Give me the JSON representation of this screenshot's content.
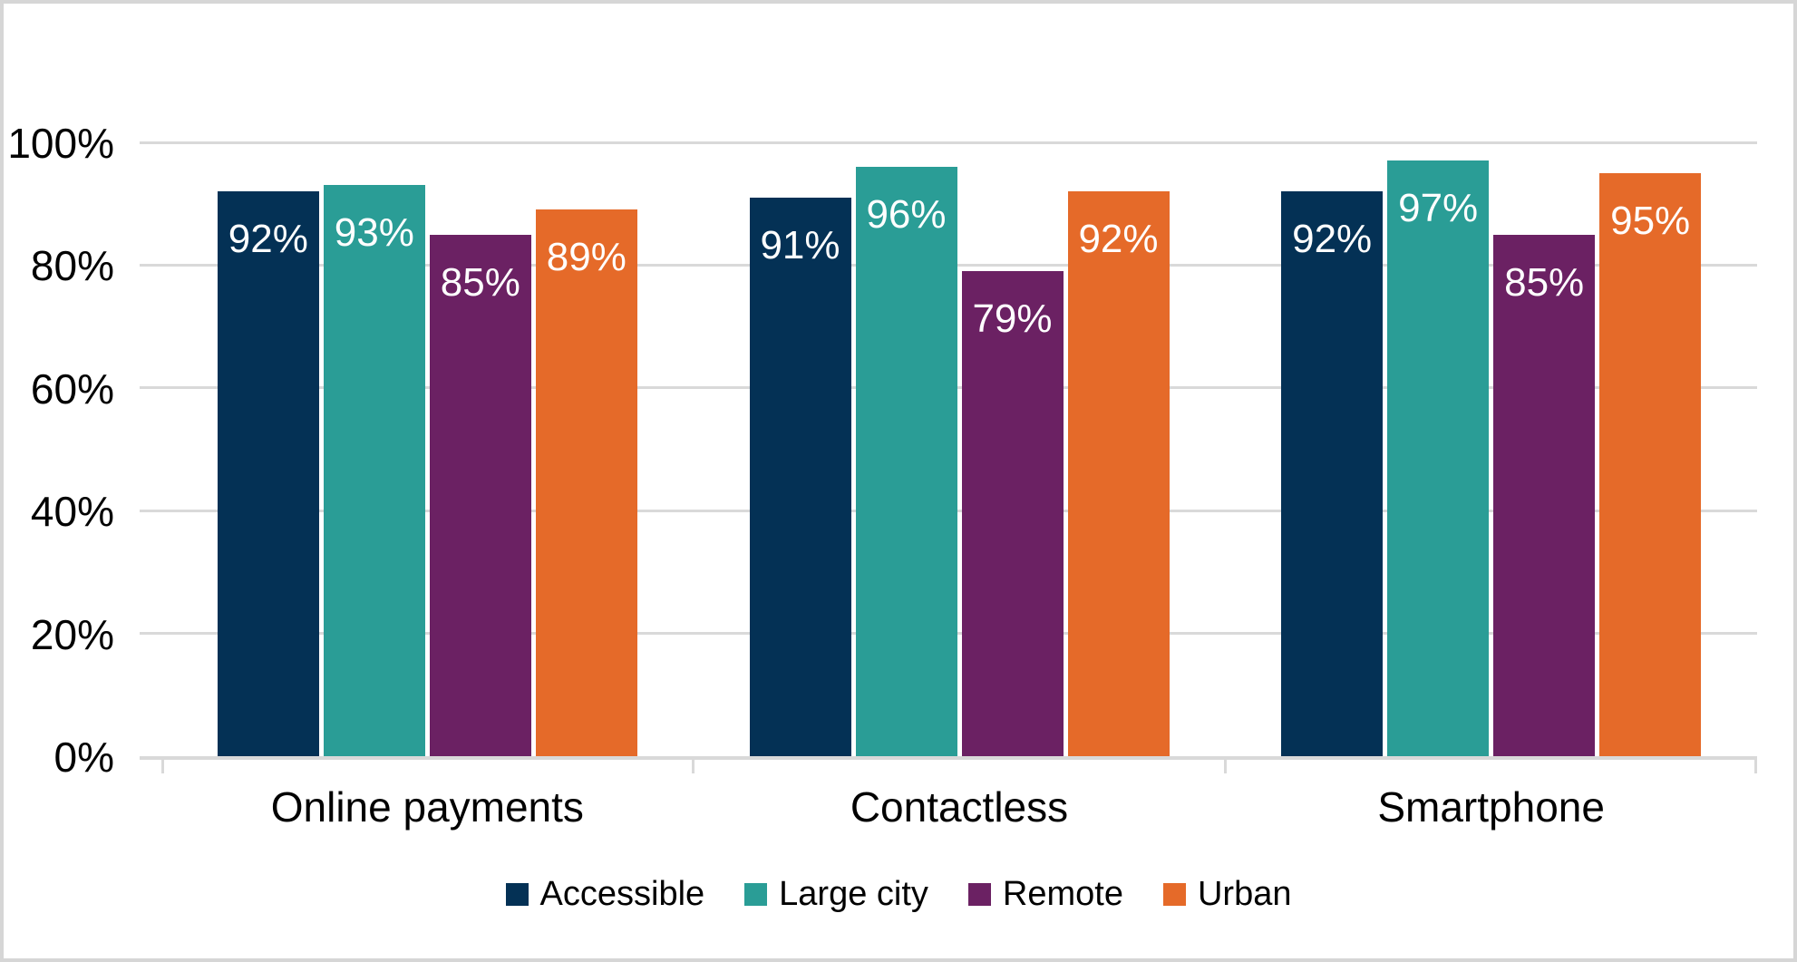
{
  "chart_data": {
    "type": "bar",
    "title": "",
    "categories": [
      "Online payments",
      "Contactless",
      "Smartphone"
    ],
    "series": [
      {
        "name": "Accessible",
        "color": "#043155",
        "values": [
          92,
          91,
          92
        ],
        "labels": [
          "92%",
          "91%",
          "92%"
        ]
      },
      {
        "name": "Large city",
        "color": "#2a9d96",
        "values": [
          93,
          96,
          97
        ],
        "labels": [
          "93%",
          "96%",
          "97%"
        ]
      },
      {
        "name": "Remote",
        "color": "#6b2163",
        "values": [
          85,
          79,
          85
        ],
        "labels": [
          "85%",
          "79%",
          "85%"
        ]
      },
      {
        "name": "Urban",
        "color": "#e56a29",
        "values": [
          89,
          92,
          95
        ],
        "labels": [
          "89%",
          "92%",
          "95%"
        ]
      }
    ],
    "xlabel": "",
    "ylabel": "",
    "ylim": [
      0,
      100
    ],
    "y_ticks": [
      {
        "label": "0%",
        "value": 0
      },
      {
        "label": "20%",
        "value": 20
      },
      {
        "label": "40%",
        "value": 40
      },
      {
        "label": "60%",
        "value": 60
      },
      {
        "label": "80%",
        "value": 80
      },
      {
        "label": "100%",
        "value": 100
      }
    ],
    "grid": true,
    "legend_position": "bottom",
    "style": {
      "grid_color": "#d9d9d9",
      "axis_color": "#d9d9d9",
      "text_color": "#000000",
      "bar_label_color": "#ffffff",
      "background_color": "#ffffff",
      "frame_border_color": "#d6d6d6"
    }
  }
}
